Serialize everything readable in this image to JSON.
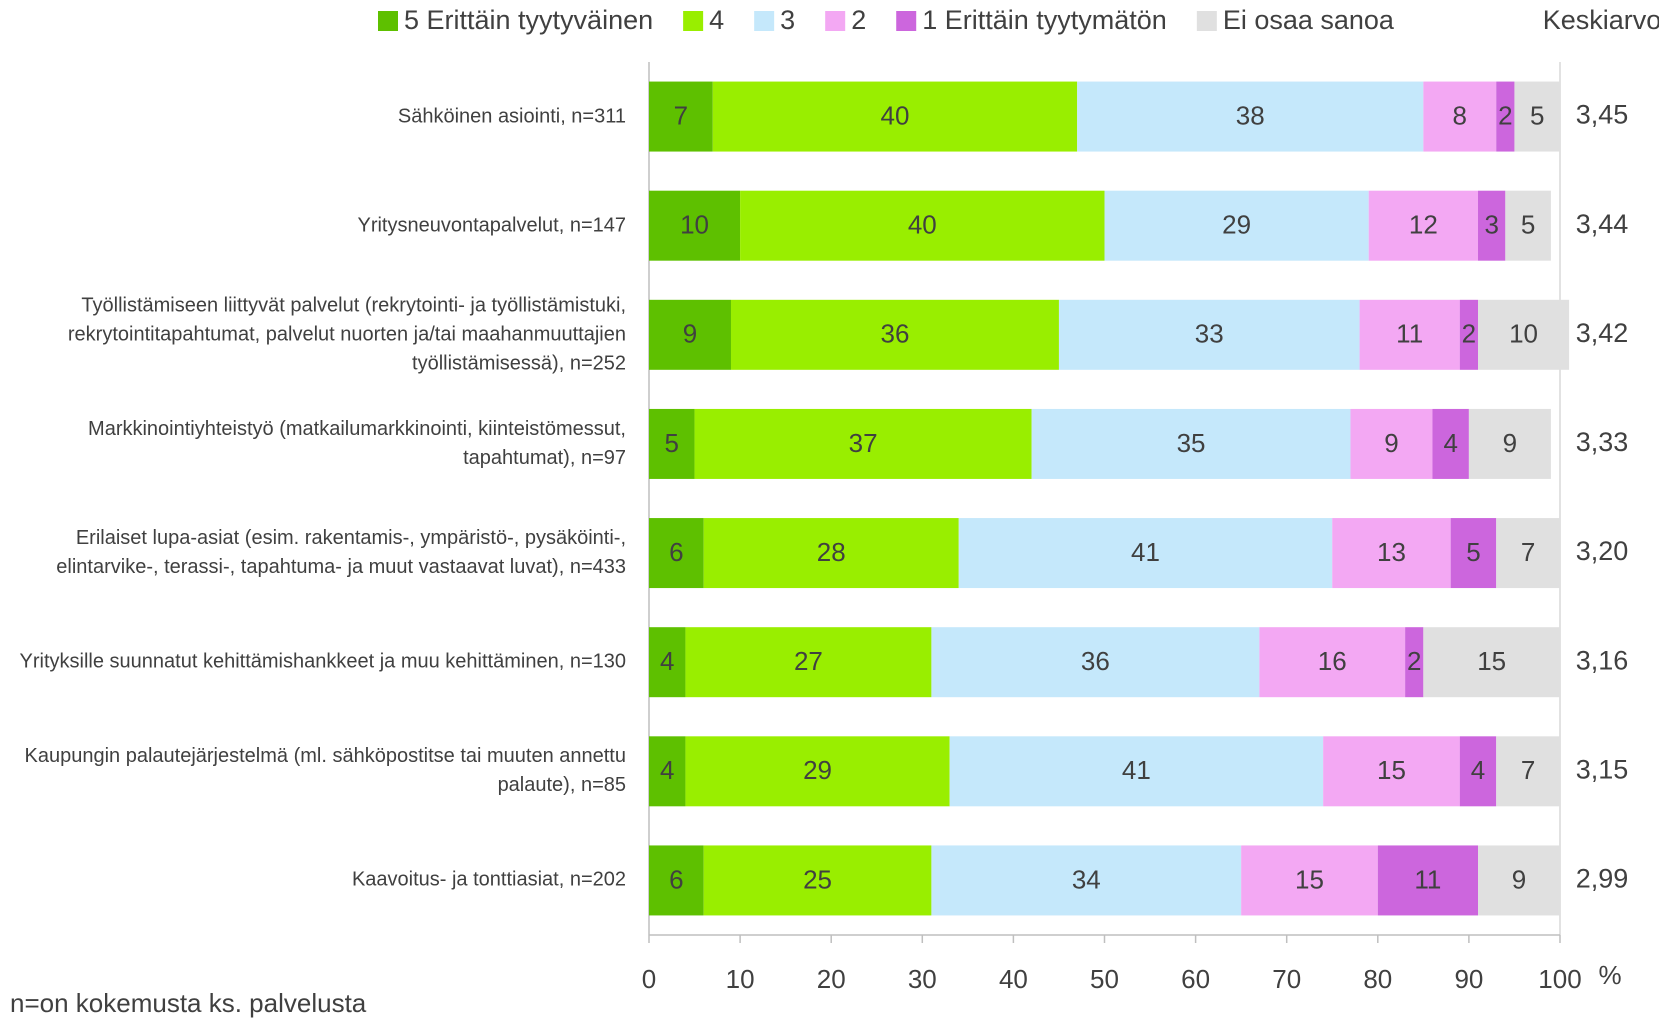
{
  "chart_data": {
    "type": "stacked-barh",
    "categories": [
      "Sähköinen asiointi, n=311",
      "Yritysneuvontapalvelut, n=147",
      "Työllistämiseen liittyvät palvelut (rekrytointi- ja työllistämistuki, rekrytointitapahtumat, palvelut nuorten ja/tai maahanmuuttajien työllistämisessä), n=252",
      "Markkinointiyhteistyö (matkailumarkkinointi, kiinteistömessut, tapahtumat), n=97",
      "Erilaiset lupa-asiat (esim. rakentamis-, ympäristö-, pysäköinti-, elintarvike-, terassi-, tapahtuma- ja muut vastaavat luvat), n=433",
      "Yrityksille suunnatut kehittämishankkeet ja muu kehittäminen, n=130",
      "Kaupungin palautejärjestelmä (ml. sähköpostitse tai muuten annettu palaute), n=85",
      "Kaavoitus- ja tonttiasiat, n=202"
    ],
    "series": [
      {
        "name": "5 Erittäin tyytyväinen",
        "color": "#5ec000",
        "values": [
          7,
          10,
          9,
          5,
          6,
          4,
          4,
          6
        ]
      },
      {
        "name": "4",
        "color": "#99ee00",
        "values": [
          40,
          40,
          36,
          37,
          28,
          27,
          29,
          25
        ]
      },
      {
        "name": "3",
        "color": "#c5e8fb",
        "values": [
          38,
          29,
          33,
          35,
          41,
          36,
          41,
          34
        ]
      },
      {
        "name": "2",
        "color": "#f3a8f3",
        "values": [
          8,
          12,
          11,
          9,
          13,
          16,
          15,
          15
        ]
      },
      {
        "name": "1 Erittäin tyytymätön",
        "color": "#cc66dd",
        "values": [
          2,
          3,
          2,
          4,
          5,
          2,
          4,
          11
        ]
      },
      {
        "name": "Ei osaa sanoa",
        "color": "#e0e0e0",
        "values": [
          5,
          5,
          10,
          9,
          7,
          15,
          7,
          9
        ]
      }
    ],
    "mean": {
      "name": "Keskiarvo",
      "values": [
        3.45,
        3.44,
        3.42,
        3.33,
        3.2,
        3.16,
        3.15,
        2.99
      ],
      "value_labels": [
        "3,45",
        "3,44",
        "3,42",
        "3,33",
        "3,20",
        "3,16",
        "3,15",
        "2,99"
      ]
    },
    "xlim": [
      0,
      100
    ],
    "xticks": [
      0,
      10,
      20,
      30,
      40,
      50,
      60,
      70,
      80,
      90,
      100
    ],
    "x_unit": "%",
    "grid": false,
    "legend": "top",
    "footnote": "n=on kokemusta ks. palvelusta"
  }
}
